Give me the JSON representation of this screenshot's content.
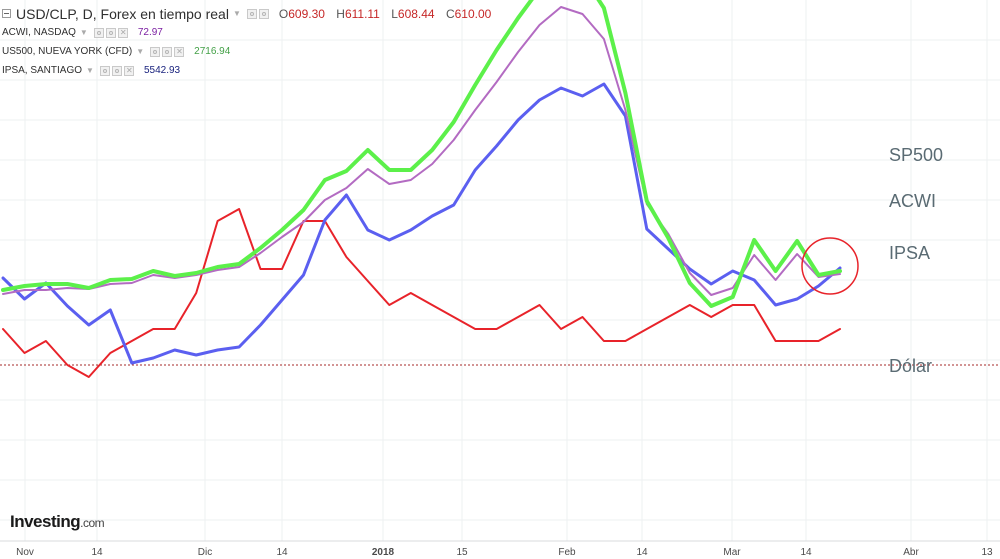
{
  "legend": {
    "main": {
      "title": "USD/CLP, D, Forex en tiempo real",
      "o_label": "O",
      "o": "609.30",
      "h_label": "H",
      "h": "611.11",
      "l_label": "L",
      "l": "608.44",
      "c_label": "C",
      "c": "610.00"
    },
    "acwi": {
      "title": "ACWI, NASDAQ",
      "value": "72.97",
      "color": "#9c27b0"
    },
    "us500": {
      "title": "US500, NUEVA YORK (CFD)",
      "value": "2716.94",
      "color": "#4caf50"
    },
    "ipsa": {
      "title": "IPSA, SANTIAGO",
      "value": "5542.93",
      "color": "#1a237e"
    }
  },
  "labels": {
    "sp500": "SP500",
    "acwi": "ACWI",
    "ipsa": "IPSA",
    "dolar": "Dólar"
  },
  "logo": {
    "brand": "Investing",
    "suffix": ".com"
  },
  "chart_data": {
    "type": "line",
    "x_ticks": [
      "Nov",
      "14",
      "Dic",
      "14",
      "2018",
      "15",
      "Feb",
      "14",
      "Mar",
      "14",
      "Abr",
      "13"
    ],
    "grid": true,
    "colors": {
      "sp500": "#5cf04a",
      "acwi": "#b36bc2",
      "ipsa": "#5b5ff0",
      "dolar": "#e8232a",
      "dolar_ref": "#a52a2a"
    },
    "series": [
      {
        "name": "SP500",
        "key": "sp500",
        "values": [
          190,
          194,
          196,
          196,
          192,
          200,
          201,
          209,
          204,
          207,
          213,
          216,
          232,
          250,
          270,
          300,
          309,
          330,
          310,
          310,
          330,
          358,
          395,
          430,
          462,
          491,
          511,
          505,
          472,
          387,
          279,
          242,
          197,
          174,
          183,
          240,
          209,
          239,
          205,
          209
        ]
      },
      {
        "name": "ACWI",
        "key": "acwi",
        "values": [
          186,
          190,
          190,
          192,
          191,
          196,
          197,
          205,
          202,
          205,
          210,
          213,
          227,
          243,
          258,
          280,
          292,
          311,
          296,
          300,
          316,
          340,
          370,
          398,
          428,
          455,
          473,
          466,
          441,
          370,
          276,
          246,
          207,
          185,
          192,
          225,
          200,
          226,
          203,
          206
        ]
      },
      {
        "name": "IPSA",
        "key": "ipsa",
        "values": [
          202,
          181,
          197,
          174,
          155,
          170,
          117,
          122,
          130,
          125,
          130,
          133,
          155,
          180,
          205,
          260,
          285,
          250,
          240,
          250,
          264,
          275,
          310,
          334,
          360,
          380,
          392,
          384,
          396,
          364,
          251,
          231,
          211,
          196,
          209,
          200,
          175,
          181,
          194,
          212
        ]
      },
      {
        "name": "Dólar",
        "key": "dolar",
        "values": [
          610,
          608,
          609,
          607,
          606,
          608,
          609,
          610,
          610,
          613,
          619,
          620,
          615,
          615,
          619,
          619,
          616,
          614,
          612,
          613,
          612,
          611,
          610,
          610,
          611,
          612,
          610,
          611,
          609,
          609,
          610,
          611,
          612,
          611,
          612,
          612,
          609,
          609,
          609,
          610
        ]
      }
    ]
  }
}
